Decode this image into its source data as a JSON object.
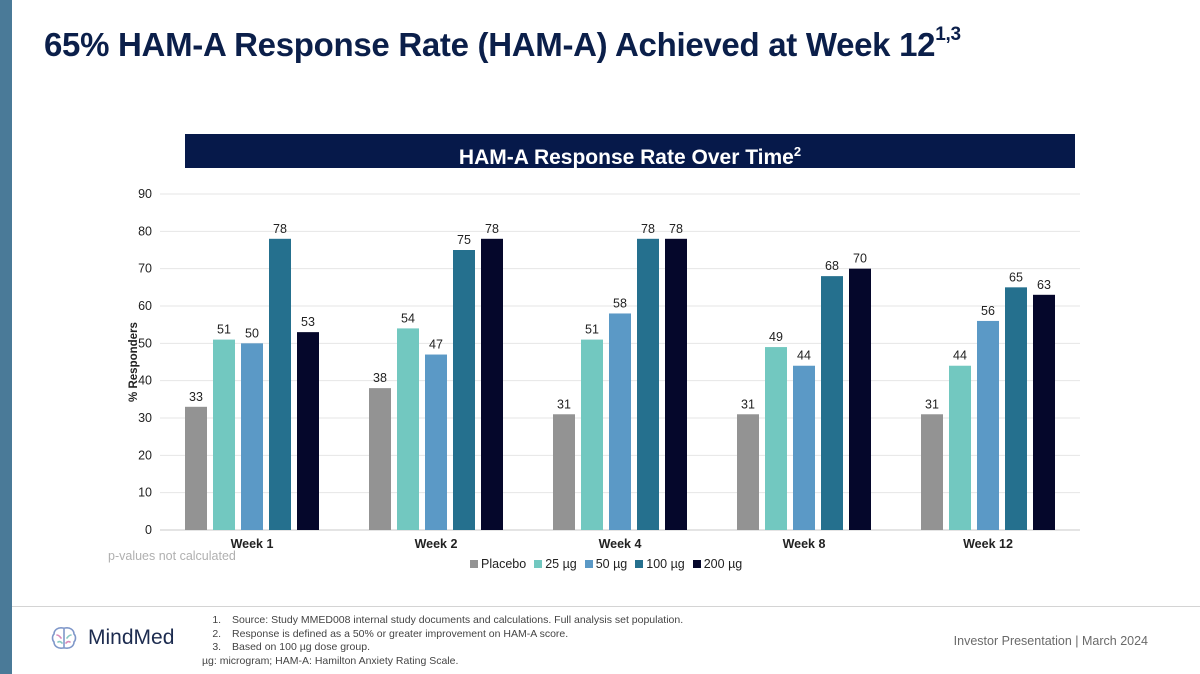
{
  "header": {
    "title": "65% HAM-A Response Rate (HAM-A) Achieved at Week 12",
    "title_superscript": "1,3"
  },
  "banner": {
    "title": "HAM-A Response Rate Over Time",
    "superscript": "2"
  },
  "chart_data": {
    "type": "bar",
    "ylabel": "% Responders",
    "xlabel": "",
    "ylim": [
      0,
      90
    ],
    "yticks": [
      0,
      10,
      20,
      30,
      40,
      50,
      60,
      70,
      80,
      90
    ],
    "grid": true,
    "legend_position": "bottom",
    "categories": [
      "Week 1",
      "Week 2",
      "Week 4",
      "Week 8",
      "Week 12"
    ],
    "series": [
      {
        "name": "Placebo",
        "color": "#939393",
        "values": [
          33,
          38,
          31,
          31,
          31
        ]
      },
      {
        "name": "25 µg",
        "color": "#72c8c0",
        "values": [
          51,
          54,
          51,
          49,
          44
        ]
      },
      {
        "name": "50 µg",
        "color": "#5b99c6",
        "values": [
          50,
          47,
          58,
          44,
          56
        ]
      },
      {
        "name": "100 µg",
        "color": "#25708e",
        "values": [
          78,
          75,
          78,
          68,
          65
        ]
      },
      {
        "name": "200 µg",
        "color": "#05072b",
        "values": [
          53,
          78,
          78,
          70,
          63
        ]
      }
    ]
  },
  "note": "p-values not calculated",
  "footer": {
    "logo_text": "MindMed",
    "footnotes": [
      "Source: Study MMED008 internal study documents and calculations. Full analysis set population.",
      "Response is defined as a 50% or greater improvement on HAM-A score.",
      "Based on 100 µg dose group."
    ],
    "abbreviations": "µg: microgram; HAM-A: Hamilton Anxiety Rating Scale.",
    "presentation_label": "Investor Presentation | March 2024"
  },
  "colors": {
    "brand_navy": "#06194a",
    "left_accent": "#4a7a98"
  }
}
